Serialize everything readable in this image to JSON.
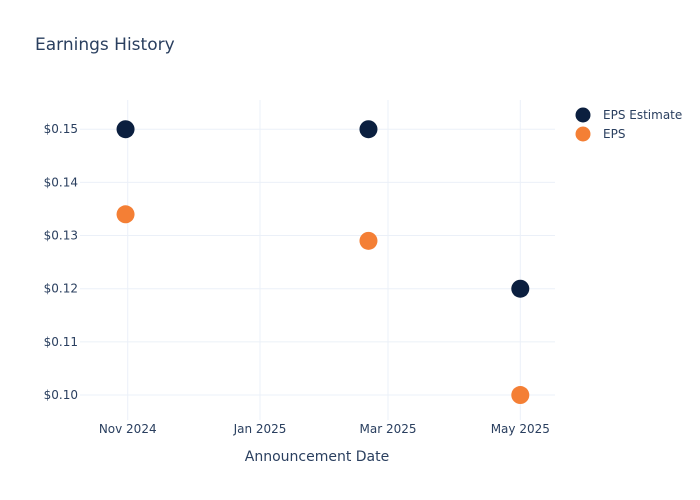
{
  "chart_data": {
    "type": "scatter",
    "title": "Earnings History",
    "xlabel": "Announcement Date",
    "ylabel": "",
    "x_ticks": [
      {
        "date": "2024-11-01",
        "label": "Nov 2024"
      },
      {
        "date": "2025-01-01",
        "label": "Jan 2025"
      },
      {
        "date": "2025-03-01",
        "label": "Mar 2025"
      },
      {
        "date": "2025-05-01",
        "label": "May 2025"
      }
    ],
    "y_ticks": [
      0.1,
      0.11,
      0.12,
      0.13,
      0.14,
      0.15
    ],
    "y_tick_prefix": "$",
    "xlim": [
      "2024-10-10",
      "2025-05-17"
    ],
    "ylim": [
      0.0953,
      0.1555
    ],
    "grid": true,
    "legend_position": "top-right",
    "series": [
      {
        "name": "EPS Estimate",
        "color": "#0b1f3f",
        "points": [
          {
            "x": "2024-10-31",
            "y": 0.15
          },
          {
            "x": "2025-02-20",
            "y": 0.15
          },
          {
            "x": "2025-05-01",
            "y": 0.12
          }
        ]
      },
      {
        "name": "EPS",
        "color": "#f47f35",
        "points": [
          {
            "x": "2024-10-31",
            "y": 0.134
          },
          {
            "x": "2025-02-20",
            "y": 0.129
          },
          {
            "x": "2025-05-01",
            "y": 0.1
          }
        ]
      }
    ]
  }
}
